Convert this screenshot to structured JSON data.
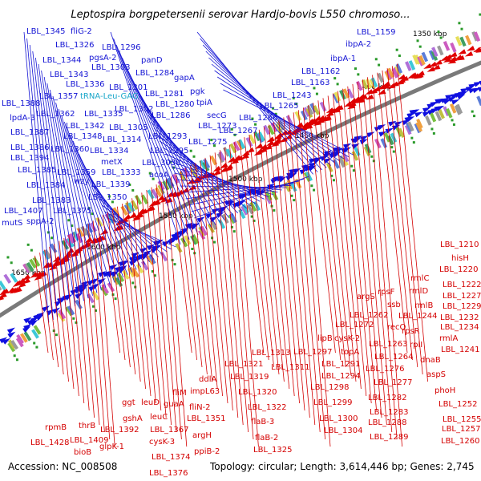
{
  "title": "Leptospira borgpetersenii serovar Hardjo-bovis L550 chromoso...",
  "footer": {
    "accession": "Accession: NC_008508",
    "info": "Topology: circular; Length: 3,614,446 bp; Genes: 2,745"
  },
  "colors": {
    "forward_strand": "#1010e0",
    "reverse_strand": "#e00000",
    "backbone": "#7a7a7a",
    "tick": "#2a9a2a",
    "trna_label": "#18a6c9"
  },
  "kbp_labels": [
    "1350 kbp",
    "1400 kbp",
    "1450 kbp",
    "1500 kbp",
    "1550 kbp",
    "1600 kbp",
    "1650 kbp"
  ],
  "upper_labels": [
    "LBL_1345",
    "fliG-2",
    "LBL_1326",
    "LBL_1296",
    "LBL_1344",
    "pgsA-2",
    "panD",
    "LBL_1303",
    "LBL_1343",
    "LBL_1284",
    "gapA",
    "LBL_1336",
    "LBL_1301",
    "LBL_1357",
    "tRNA-Leu-GAG",
    "LBL_1281",
    "pgk",
    "LBL_1388",
    "LBL_1280",
    "tpiA",
    "LBL_1362",
    "LBL_1335",
    "LBL_1302",
    "lpdA-3",
    "LBL_1342",
    "LBL_1286",
    "secG",
    "LBL_1305",
    "LBL_1387",
    "LBL_1348",
    "LBL_1314",
    "LBL_1293",
    "LBL_1386",
    "LBL_1360",
    "LBL_1334",
    "LBL_1394",
    "metX",
    "LBL_1295",
    "LBL_1385",
    "LBL_1359",
    "LBL_1333",
    "LBL_3038",
    "wzy",
    "acoA",
    "LBL_1384",
    "LBL_1339",
    "LBL_1350",
    "LBL_1383",
    "LBL_1407",
    "LBL_1375",
    "mutS",
    "sppA-2",
    "LBL_1273",
    "LBL_1275",
    "LBL_1266",
    "LBL_1267",
    "LBL_1265",
    "LBL_1243",
    "LBL_1163",
    "LBL_1162",
    "ibpA-1",
    "ibpA-2",
    "LBL_1159"
  ],
  "lower_labels": [
    "LBL_1210",
    "hisH",
    "LBL_1220",
    "LBL_1222",
    "rmlC",
    "LBL_1227",
    "rmlD",
    "LBL_1229",
    "argS",
    "rpsF",
    "rmlB",
    "LBL_1232",
    "ssb",
    "LBL_1244",
    "LBL_1234",
    "LBL_1262",
    "recO",
    "rpsR",
    "rmlA",
    "LBL_1272",
    "LBL_1263",
    "rplI",
    "LBL_1241",
    "lipB",
    "cysK-2",
    "LBL_1264",
    "dnaB",
    "LBL_1313",
    "LBL_1297",
    "topA",
    "LBL_1291",
    "LBL_1276",
    "aspS",
    "LBL_1321",
    "LBL_1311",
    "LBL_1294",
    "LBL_1277",
    "LBL_1319",
    "LBL_1298",
    "phoH",
    "LBL_1282",
    "LBL_1320",
    "LBL_1299",
    "LBL_1252",
    "LBL_1283",
    "LBL_1322",
    "LBL_1300",
    "LBL_1255",
    "flaB-3",
    "LBL_1288",
    "LBL_1257",
    "LBL_1304",
    "LBL_1289",
    "flaB-2",
    "LBL_1260",
    "LBL_1325",
    "ddlA",
    "impL63",
    "fliM",
    "guaA",
    "ggt",
    "leuD",
    "fliN-2",
    "gshA",
    "leuC",
    "LBL_1351",
    "LBL_1392",
    "LBL_1367",
    "argH",
    "cysK-3",
    "ppiB-2",
    "glpK-1",
    "LBL_1374",
    "LBL_1376",
    "thrB",
    "rpmB",
    "LBL_1409",
    "LBL_1428",
    "bioB"
  ]
}
